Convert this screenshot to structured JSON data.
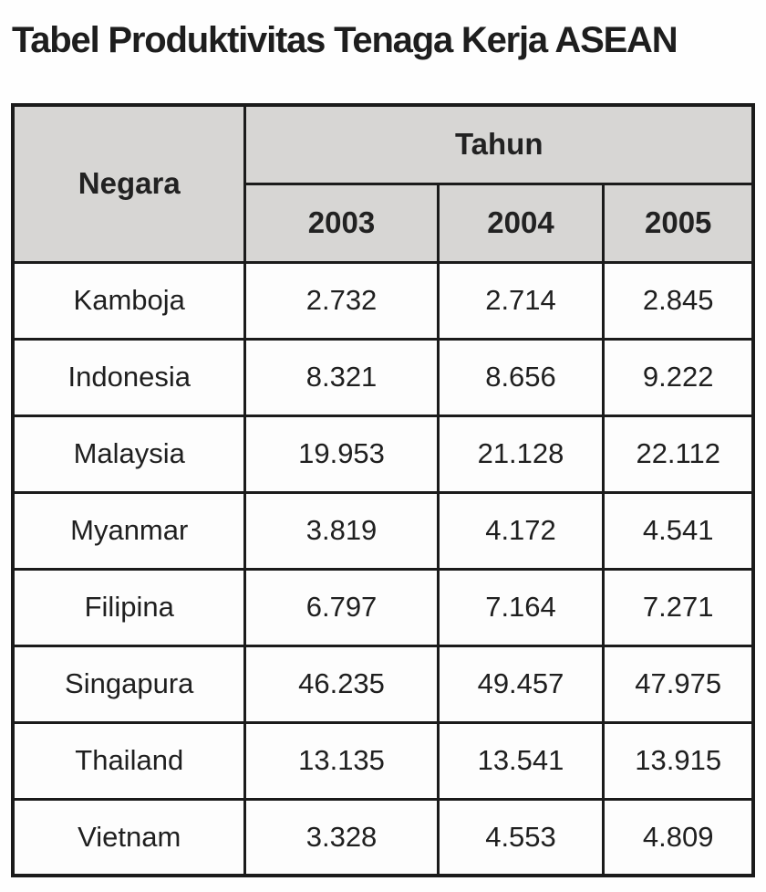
{
  "page_title": "Tabel Produktivitas Tenaga Kerja ASEAN",
  "colors": {
    "header_bg": "#d7d6d4",
    "border": "#1b1b1b",
    "cell_bg": "#fdfdfd",
    "text": "#1f1f1f",
    "page_bg": "#fefefe"
  },
  "table": {
    "corner_header": "Negara",
    "group_header": "Tahun",
    "year_headers": [
      "2003",
      "2004",
      "2005"
    ],
    "rows": [
      {
        "country": "Kamboja",
        "values": [
          "2.732",
          "2.714",
          "2.845"
        ]
      },
      {
        "country": "Indonesia",
        "values": [
          "8.321",
          "8.656",
          "9.222"
        ]
      },
      {
        "country": "Malaysia",
        "values": [
          "19.953",
          "21.128",
          "22.112"
        ]
      },
      {
        "country": "Myanmar",
        "values": [
          "3.819",
          "4.172",
          "4.541"
        ]
      },
      {
        "country": "Filipina",
        "values": [
          "6.797",
          "7.164",
          "7.271"
        ]
      },
      {
        "country": "Singapura",
        "values": [
          "46.235",
          "49.457",
          "47.975"
        ]
      },
      {
        "country": "Thailand",
        "values": [
          "13.135",
          "13.541",
          "13.915"
        ]
      },
      {
        "country": "Vietnam",
        "values": [
          "3.328",
          "4.553",
          "4.809"
        ]
      }
    ]
  },
  "chart_data": {
    "type": "table",
    "title": "Tabel Produktivitas Tenaga Kerja ASEAN",
    "columns": [
      "Negara",
      "2003",
      "2004",
      "2005"
    ],
    "column_group": {
      "label": "Tahun",
      "covers": [
        "2003",
        "2004",
        "2005"
      ]
    },
    "rows": [
      [
        "Kamboja",
        "2.732",
        "2.714",
        "2.845"
      ],
      [
        "Indonesia",
        "8.321",
        "8.656",
        "9.222"
      ],
      [
        "Malaysia",
        "19.953",
        "21.128",
        "22.112"
      ],
      [
        "Myanmar",
        "3.819",
        "4.172",
        "4.541"
      ],
      [
        "Filipina",
        "6.797",
        "7.164",
        "7.271"
      ],
      [
        "Singapura",
        "46.235",
        "49.457",
        "47.975"
      ],
      [
        "Thailand",
        "13.135",
        "13.541",
        "13.915"
      ],
      [
        "Vietnam",
        "3.328",
        "4.553",
        "4.809"
      ]
    ]
  }
}
